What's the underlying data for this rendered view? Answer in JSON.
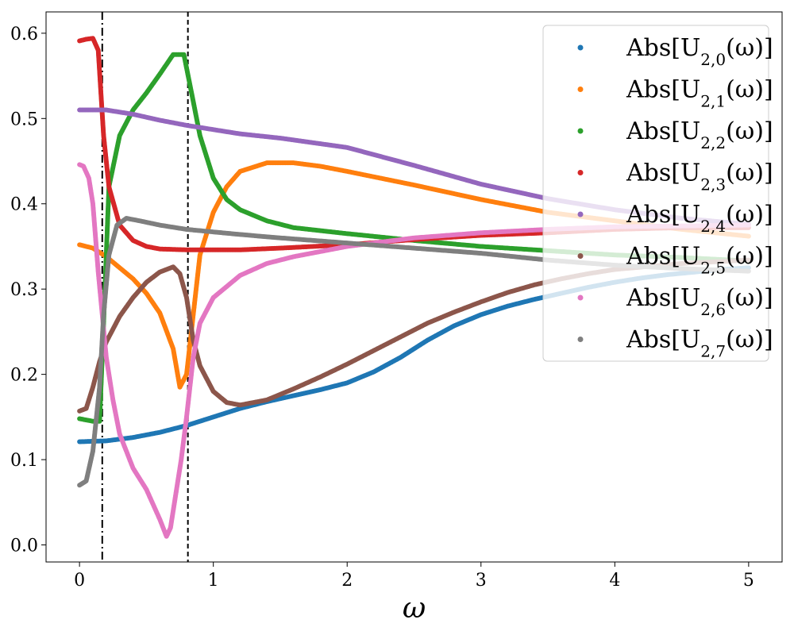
{
  "chart_data": {
    "type": "scatter",
    "title": "",
    "xlabel": "ω",
    "ylabel": "",
    "xlim": [
      -0.25,
      5.25
    ],
    "ylim": [
      -0.02,
      0.625
    ],
    "x_ticks": [
      0,
      1,
      2,
      3,
      4,
      5
    ],
    "x_tick_labels": [
      "0",
      "1",
      "2",
      "3",
      "4",
      "5"
    ],
    "y_ticks": [
      0.0,
      0.1,
      0.2,
      0.3,
      0.4,
      0.5,
      0.6
    ],
    "y_tick_labels": [
      "0.0",
      "0.1",
      "0.2",
      "0.3",
      "0.4",
      "0.5",
      "0.6"
    ],
    "grid": false,
    "legend_position": "top-right",
    "vlines": [
      {
        "x": 0.17,
        "style": "dashdot",
        "color": "#000000"
      },
      {
        "x": 0.81,
        "style": "dashed",
        "color": "#000000"
      }
    ],
    "series": [
      {
        "name": "Abs[U_{2,0}(ω)]",
        "legend_base": "Abs[U",
        "legend_sub": "2,0",
        "legend_tail": "(ω)]",
        "color": "#1f77b4",
        "points": [
          [
            0,
            0.121
          ],
          [
            0.2,
            0.122
          ],
          [
            0.4,
            0.126
          ],
          [
            0.6,
            0.132
          ],
          [
            0.8,
            0.14
          ],
          [
            1.0,
            0.15
          ],
          [
            1.2,
            0.16
          ],
          [
            1.4,
            0.168
          ],
          [
            1.6,
            0.175
          ],
          [
            1.8,
            0.182
          ],
          [
            2.0,
            0.19
          ],
          [
            2.2,
            0.203
          ],
          [
            2.4,
            0.22
          ],
          [
            2.6,
            0.24
          ],
          [
            2.8,
            0.257
          ],
          [
            3.0,
            0.27
          ],
          [
            3.2,
            0.28
          ],
          [
            3.4,
            0.288
          ],
          [
            3.6,
            0.295
          ],
          [
            3.8,
            0.302
          ],
          [
            4.0,
            0.308
          ],
          [
            4.2,
            0.313
          ],
          [
            4.4,
            0.317
          ],
          [
            4.6,
            0.32
          ],
          [
            4.8,
            0.323
          ],
          [
            5.0,
            0.325
          ]
        ]
      },
      {
        "name": "Abs[U_{2,1}(ω)]",
        "legend_base": "Abs[U",
        "legend_sub": "2,1",
        "legend_tail": "(ω)]",
        "color": "#ff7f0e",
        "points": [
          [
            0,
            0.352
          ],
          [
            0.1,
            0.348
          ],
          [
            0.2,
            0.338
          ],
          [
            0.3,
            0.325
          ],
          [
            0.4,
            0.312
          ],
          [
            0.5,
            0.295
          ],
          [
            0.6,
            0.272
          ],
          [
            0.7,
            0.23
          ],
          [
            0.75,
            0.185
          ],
          [
            0.8,
            0.2
          ],
          [
            0.85,
            0.27
          ],
          [
            0.9,
            0.34
          ],
          [
            1.0,
            0.39
          ],
          [
            1.1,
            0.42
          ],
          [
            1.2,
            0.438
          ],
          [
            1.4,
            0.448
          ],
          [
            1.6,
            0.448
          ],
          [
            1.8,
            0.444
          ],
          [
            2.0,
            0.438
          ],
          [
            2.5,
            0.422
          ],
          [
            3.0,
            0.405
          ],
          [
            3.5,
            0.39
          ],
          [
            4.0,
            0.38
          ],
          [
            4.5,
            0.37
          ],
          [
            5.0,
            0.362
          ]
        ]
      },
      {
        "name": "Abs[U_{2,2}(ω)]",
        "legend_base": "Abs[U",
        "legend_sub": "2,2",
        "legend_tail": "(ω)]",
        "color": "#2ca02c",
        "points": [
          [
            0,
            0.148
          ],
          [
            0.1,
            0.145
          ],
          [
            0.15,
            0.145
          ],
          [
            0.18,
            0.26
          ],
          [
            0.22,
            0.42
          ],
          [
            0.3,
            0.48
          ],
          [
            0.4,
            0.51
          ],
          [
            0.5,
            0.53
          ],
          [
            0.6,
            0.552
          ],
          [
            0.7,
            0.575
          ],
          [
            0.78,
            0.575
          ],
          [
            0.85,
            0.52
          ],
          [
            0.9,
            0.48
          ],
          [
            1.0,
            0.43
          ],
          [
            1.1,
            0.405
          ],
          [
            1.2,
            0.393
          ],
          [
            1.4,
            0.38
          ],
          [
            1.6,
            0.372
          ],
          [
            2.0,
            0.365
          ],
          [
            2.5,
            0.357
          ],
          [
            3.0,
            0.35
          ],
          [
            3.5,
            0.345
          ],
          [
            4.0,
            0.34
          ],
          [
            4.5,
            0.337
          ],
          [
            5.0,
            0.333
          ]
        ]
      },
      {
        "name": "Abs[U_{2,3}(ω)]",
        "legend_base": "Abs[U",
        "legend_sub": "2,3",
        "legend_tail": "(ω)]",
        "color": "#d62728",
        "points": [
          [
            0,
            0.591
          ],
          [
            0.05,
            0.593
          ],
          [
            0.1,
            0.594
          ],
          [
            0.14,
            0.58
          ],
          [
            0.18,
            0.48
          ],
          [
            0.22,
            0.42
          ],
          [
            0.3,
            0.375
          ],
          [
            0.4,
            0.357
          ],
          [
            0.5,
            0.35
          ],
          [
            0.6,
            0.347
          ],
          [
            0.8,
            0.346
          ],
          [
            1.0,
            0.346
          ],
          [
            1.2,
            0.346
          ],
          [
            1.5,
            0.348
          ],
          [
            2.0,
            0.352
          ],
          [
            2.5,
            0.358
          ],
          [
            3.0,
            0.363
          ],
          [
            3.5,
            0.366
          ],
          [
            4.0,
            0.37
          ],
          [
            4.5,
            0.372
          ],
          [
            5.0,
            0.372
          ]
        ]
      },
      {
        "name": "Abs[U_{2,4}(ω)]",
        "legend_base": "Abs[U",
        "legend_sub": "2,4",
        "legend_tail": "(ω)]",
        "color": "#9467bd",
        "points": [
          [
            0,
            0.51
          ],
          [
            0.2,
            0.51
          ],
          [
            0.4,
            0.505
          ],
          [
            0.6,
            0.498
          ],
          [
            0.8,
            0.492
          ],
          [
            1.0,
            0.487
          ],
          [
            1.2,
            0.482
          ],
          [
            1.5,
            0.477
          ],
          [
            2.0,
            0.466
          ],
          [
            2.5,
            0.445
          ],
          [
            3.0,
            0.423
          ],
          [
            3.5,
            0.406
          ],
          [
            4.0,
            0.393
          ],
          [
            4.5,
            0.383
          ],
          [
            5.0,
            0.376
          ]
        ]
      },
      {
        "name": "Abs[U_{2,5}(ω)]",
        "legend_base": "Abs[U",
        "legend_sub": "2,5",
        "legend_tail": "(ω)]",
        "color": "#8c564b",
        "points": [
          [
            0,
            0.157
          ],
          [
            0.05,
            0.16
          ],
          [
            0.1,
            0.185
          ],
          [
            0.15,
            0.215
          ],
          [
            0.2,
            0.238
          ],
          [
            0.3,
            0.268
          ],
          [
            0.4,
            0.29
          ],
          [
            0.5,
            0.308
          ],
          [
            0.6,
            0.32
          ],
          [
            0.7,
            0.326
          ],
          [
            0.75,
            0.318
          ],
          [
            0.8,
            0.29
          ],
          [
            0.85,
            0.24
          ],
          [
            0.9,
            0.21
          ],
          [
            1.0,
            0.18
          ],
          [
            1.1,
            0.167
          ],
          [
            1.2,
            0.164
          ],
          [
            1.4,
            0.17
          ],
          [
            1.6,
            0.183
          ],
          [
            1.8,
            0.197
          ],
          [
            2.0,
            0.212
          ],
          [
            2.2,
            0.228
          ],
          [
            2.4,
            0.244
          ],
          [
            2.6,
            0.26
          ],
          [
            2.8,
            0.273
          ],
          [
            3.0,
            0.285
          ],
          [
            3.2,
            0.296
          ],
          [
            3.4,
            0.305
          ],
          [
            3.6,
            0.312
          ],
          [
            3.8,
            0.318
          ],
          [
            4.0,
            0.323
          ],
          [
            4.5,
            0.33
          ],
          [
            5.0,
            0.334
          ]
        ]
      },
      {
        "name": "Abs[U_{2,6}(ω)]",
        "legend_base": "Abs[U",
        "legend_sub": "2,6",
        "legend_tail": "(ω)]",
        "color": "#e377c2",
        "points": [
          [
            0,
            0.446
          ],
          [
            0.03,
            0.444
          ],
          [
            0.07,
            0.43
          ],
          [
            0.1,
            0.4
          ],
          [
            0.14,
            0.32
          ],
          [
            0.2,
            0.22
          ],
          [
            0.25,
            0.17
          ],
          [
            0.3,
            0.13
          ],
          [
            0.4,
            0.09
          ],
          [
            0.5,
            0.065
          ],
          [
            0.6,
            0.03
          ],
          [
            0.65,
            0.01
          ],
          [
            0.68,
            0.02
          ],
          [
            0.72,
            0.06
          ],
          [
            0.76,
            0.1
          ],
          [
            0.8,
            0.15
          ],
          [
            0.85,
            0.22
          ],
          [
            0.9,
            0.26
          ],
          [
            1.0,
            0.29
          ],
          [
            1.2,
            0.316
          ],
          [
            1.4,
            0.33
          ],
          [
            1.6,
            0.338
          ],
          [
            2.0,
            0.35
          ],
          [
            2.5,
            0.36
          ],
          [
            3.0,
            0.366
          ],
          [
            3.5,
            0.37
          ],
          [
            4.0,
            0.373
          ],
          [
            4.5,
            0.374
          ],
          [
            5.0,
            0.375
          ]
        ]
      },
      {
        "name": "Abs[U_{2,7}(ω)]",
        "legend_base": "Abs[U",
        "legend_sub": "2,7",
        "legend_tail": "(ω)]",
        "color": "#7f7f7f",
        "points": [
          [
            0,
            0.07
          ],
          [
            0.05,
            0.075
          ],
          [
            0.1,
            0.11
          ],
          [
            0.15,
            0.185
          ],
          [
            0.18,
            0.27
          ],
          [
            0.22,
            0.34
          ],
          [
            0.28,
            0.375
          ],
          [
            0.35,
            0.383
          ],
          [
            0.45,
            0.38
          ],
          [
            0.6,
            0.375
          ],
          [
            0.8,
            0.37
          ],
          [
            1.0,
            0.367
          ],
          [
            1.2,
            0.364
          ],
          [
            1.5,
            0.36
          ],
          [
            2.0,
            0.354
          ],
          [
            2.5,
            0.348
          ],
          [
            3.0,
            0.342
          ],
          [
            3.5,
            0.334
          ],
          [
            4.0,
            0.328
          ],
          [
            4.5,
            0.324
          ],
          [
            5.0,
            0.321
          ]
        ]
      }
    ]
  }
}
